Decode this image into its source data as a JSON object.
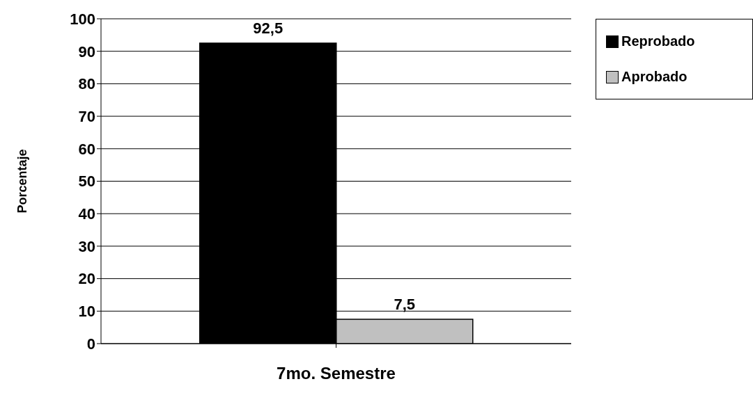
{
  "chart_data": {
    "type": "bar",
    "ylabel": "Porcentaje",
    "categories": [
      "7mo. Semestre"
    ],
    "series": [
      {
        "name": "Reprobado",
        "color": "#000000",
        "values": [
          92.5
        ],
        "value_labels": [
          "92,5"
        ]
      },
      {
        "name": "Aprobado",
        "color": "#c0c0c0",
        "values": [
          7.5
        ],
        "value_labels": [
          "7,5"
        ]
      }
    ],
    "ylim": [
      0,
      100
    ],
    "yticks": [
      0,
      10,
      20,
      30,
      40,
      50,
      60,
      70,
      80,
      90,
      100
    ],
    "grid": "y",
    "legend": "top right"
  }
}
